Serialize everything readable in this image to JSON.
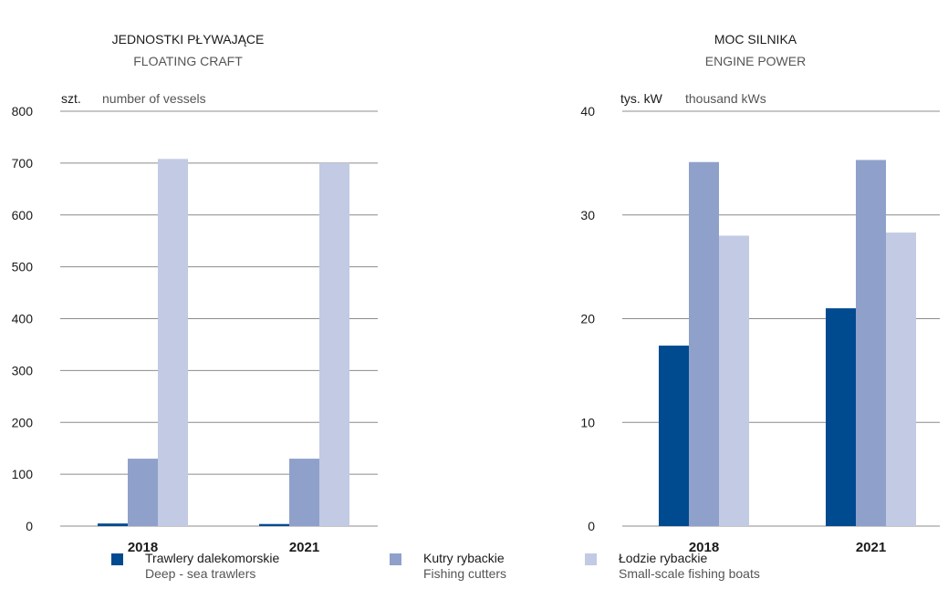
{
  "colors": {
    "trawlers": "#004a8f",
    "cutters": "#8fa1ca",
    "boats": "#c2cae4",
    "grid": "#8c8c8c",
    "title_en": "#555555"
  },
  "legend": [
    {
      "label_pl": "Trawlery dalekomorskie",
      "label_en": "Deep - sea trawlers",
      "color_key": "trawlers"
    },
    {
      "label_pl": "Kutry rybackie",
      "label_en": "Fishing cutters",
      "color_key": "cutters"
    },
    {
      "label_pl": "Łodzie rybackie",
      "label_en": "Small-scale fishing boats",
      "color_key": "boats"
    }
  ],
  "chart_data": [
    {
      "type": "bar",
      "title": "JEDNOSTKI PŁYWAJĄCE",
      "subtitle": "FLOATING CRAFT",
      "ylabel_pl": "szt.",
      "ylabel_en": "number of vessels",
      "categories": [
        "2018",
        "2021"
      ],
      "ylim": [
        0,
        800
      ],
      "yticks": [
        "0",
        "100",
        "200",
        "300",
        "400",
        "500",
        "600",
        "700",
        "800"
      ],
      "series": [
        {
          "name": "Trawlery dalekomorskie",
          "values": [
            5,
            4
          ]
        },
        {
          "name": "Kutry rybackie",
          "values": [
            130,
            130
          ]
        },
        {
          "name": "Łodzie rybackie",
          "values": [
            708,
            700
          ]
        }
      ]
    },
    {
      "type": "bar",
      "title": "MOC SILNIKA",
      "subtitle": "ENGINE POWER",
      "ylabel_pl": "tys. kW",
      "ylabel_en": "thousand kWs",
      "categories": [
        "2018",
        "2021"
      ],
      "ylim": [
        0,
        40
      ],
      "yticks": [
        "0",
        "10",
        "20",
        "30",
        "40"
      ],
      "series": [
        {
          "name": "Trawlery dalekomorskie",
          "values": [
            17.4,
            21.0
          ]
        },
        {
          "name": "Kutry rybackie",
          "values": [
            35.1,
            35.3
          ]
        },
        {
          "name": "Łodzie rybackie",
          "values": [
            28.0,
            28.3
          ]
        }
      ]
    }
  ]
}
